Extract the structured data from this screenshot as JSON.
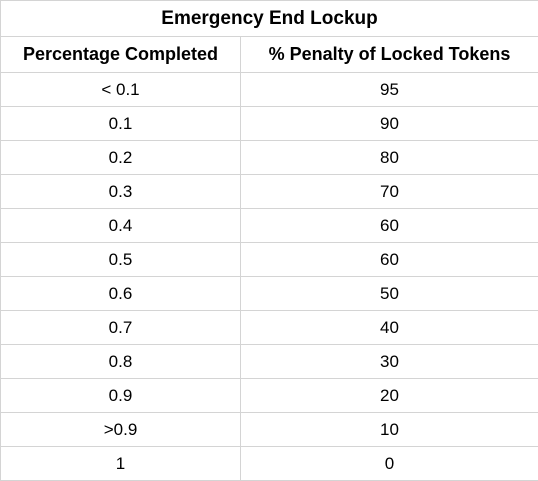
{
  "table": {
    "title": "Emergency End Lockup",
    "columns": [
      "Percentage Completed",
      "% Penalty of Locked Tokens"
    ],
    "rows": [
      [
        "< 0.1",
        95
      ],
      [
        0.1,
        90
      ],
      [
        0.2,
        80
      ],
      [
        0.3,
        70
      ],
      [
        0.4,
        60
      ],
      [
        0.5,
        60
      ],
      [
        0.6,
        50
      ],
      [
        0.7,
        40
      ],
      [
        0.8,
        30
      ],
      [
        0.9,
        20
      ],
      [
        ">0.9",
        10
      ],
      [
        1,
        0
      ]
    ]
  }
}
